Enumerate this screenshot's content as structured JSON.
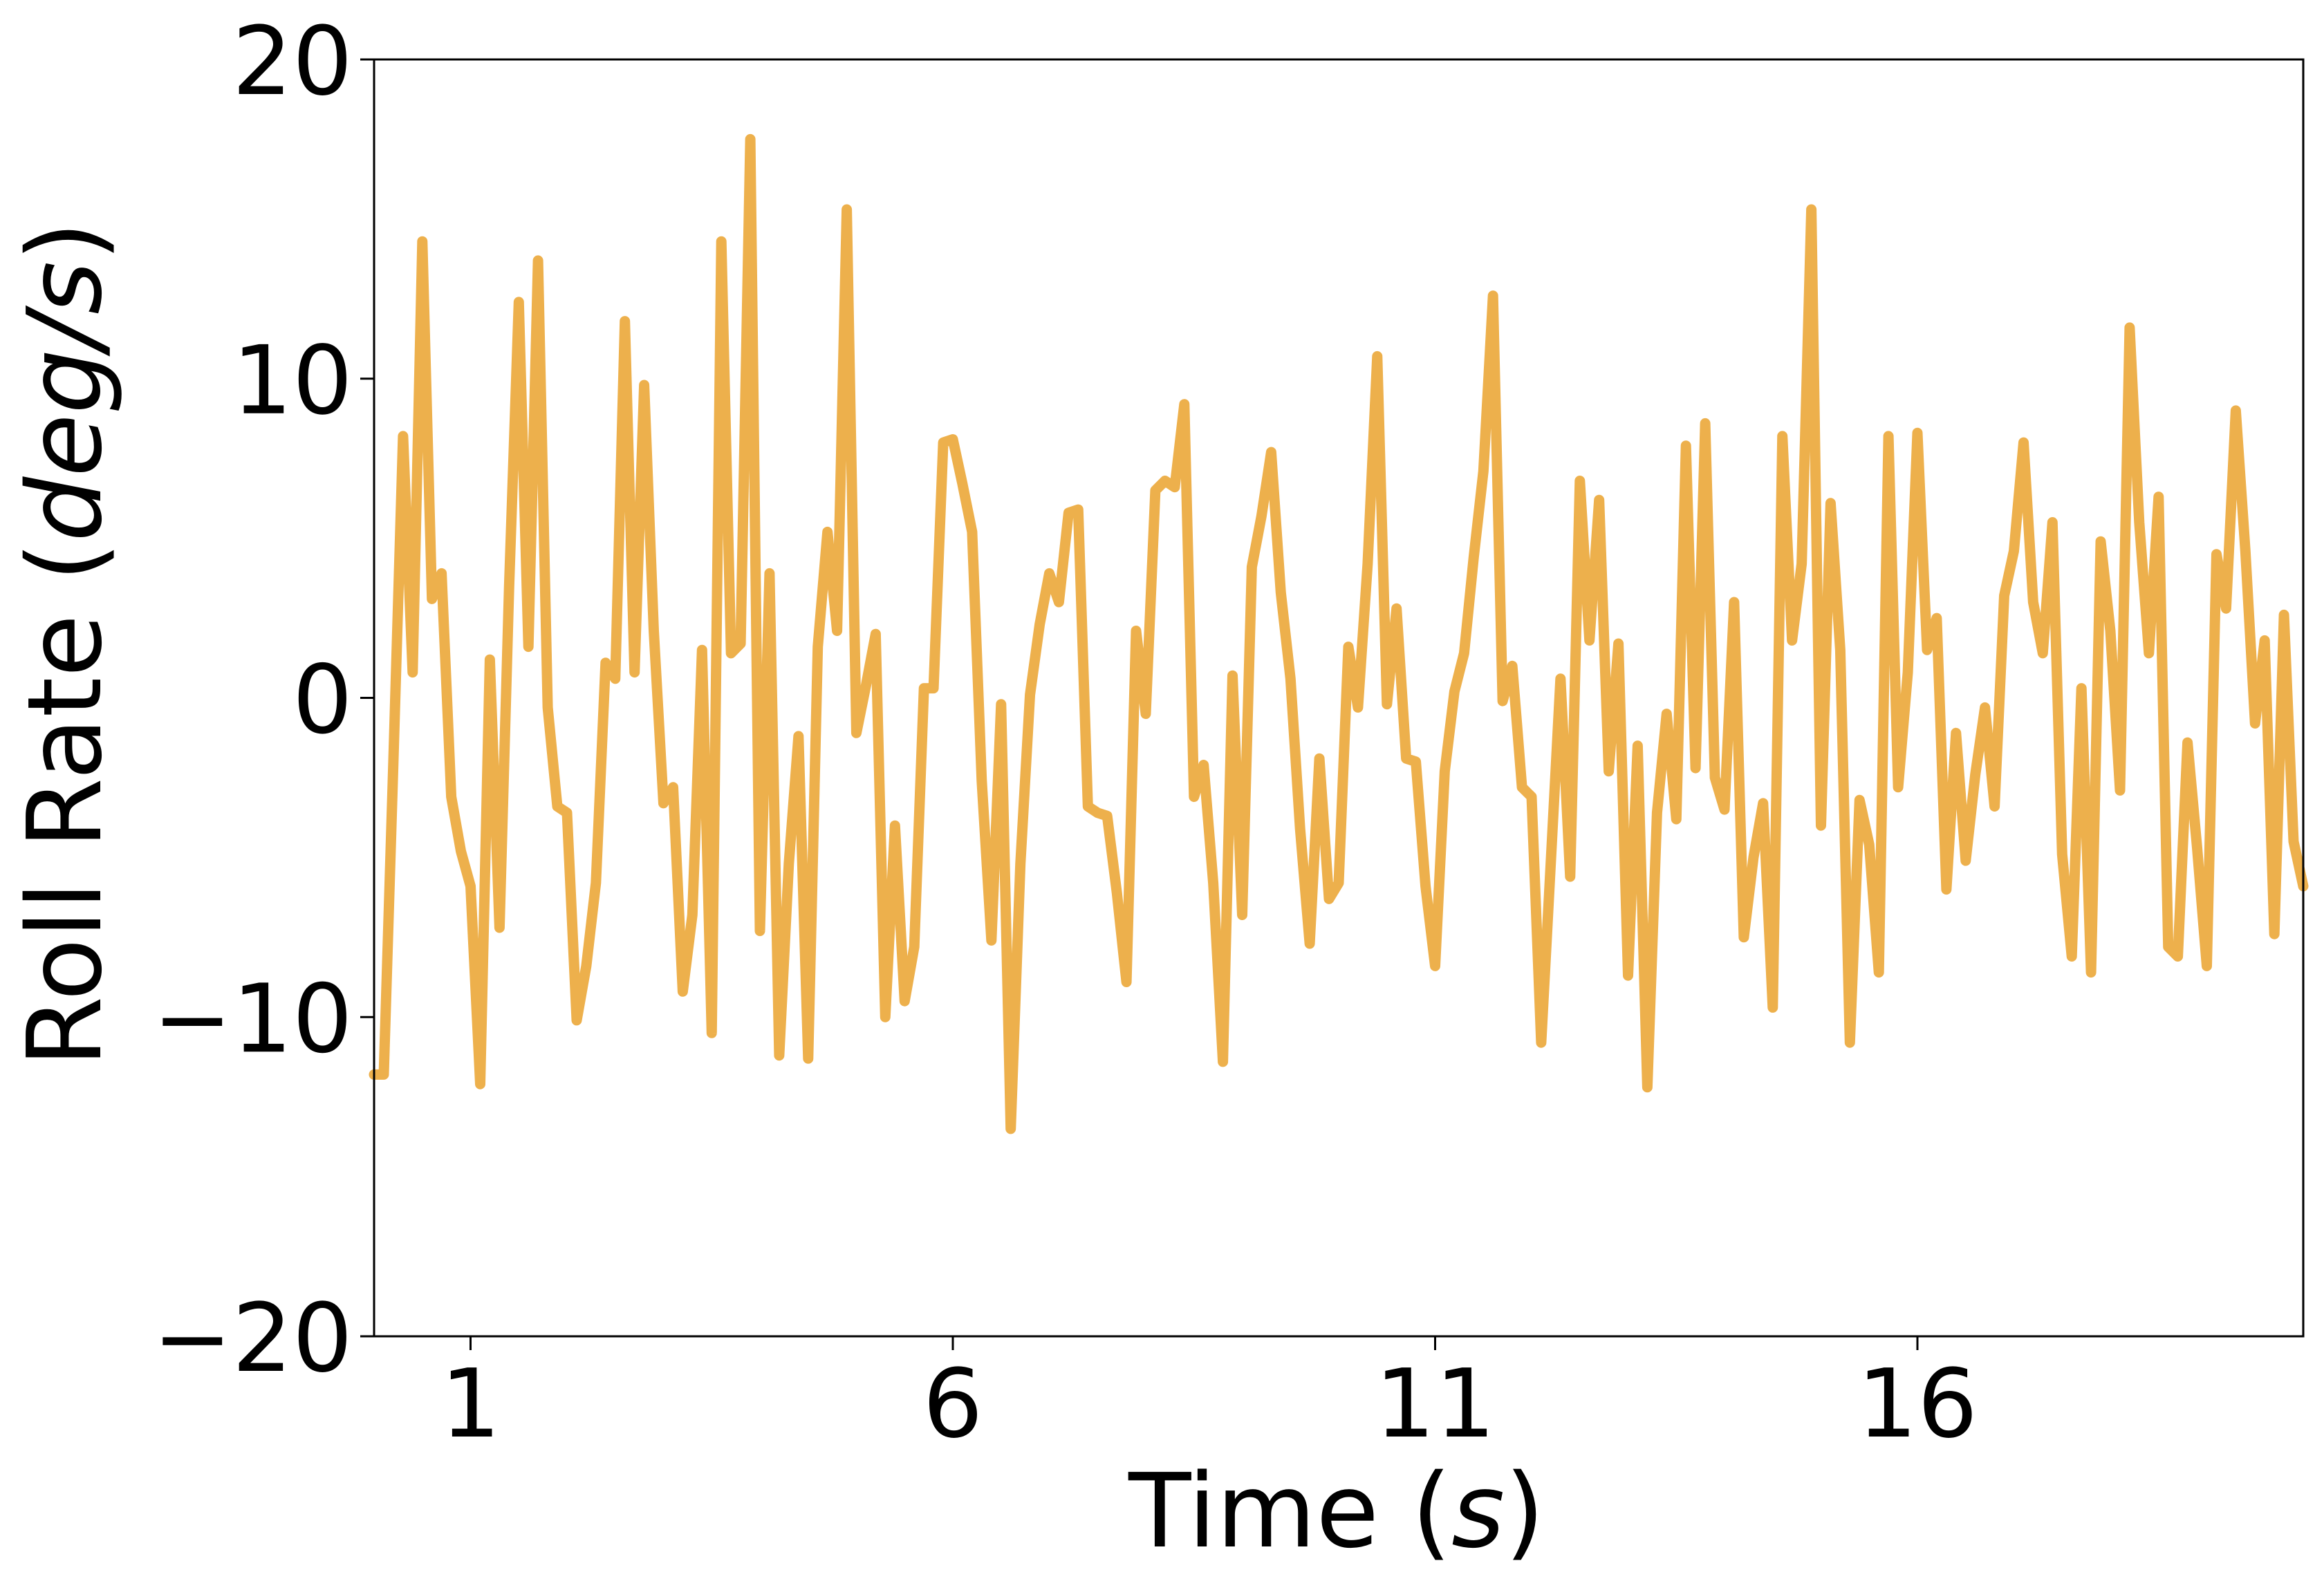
{
  "chart_data": {
    "type": "line",
    "xlabel_text": "Time (",
    "xlabel_unit": "s",
    "xlabel_close": ")",
    "ylabel_text": "Roll Rate (",
    "ylabel_unit": "deg/s",
    "ylabel_close": ")",
    "xlim": [
      0,
      20
    ],
    "ylim": [
      -20,
      20
    ],
    "xticks": [
      1,
      6,
      11,
      16
    ],
    "yticks": [
      -20,
      -10,
      0,
      10,
      20
    ],
    "ytick_labels": [
      "−20",
      "−10",
      "0",
      "10",
      "20"
    ],
    "grid": false,
    "line_color": "#EDB04C",
    "series": [
      {
        "x": [
          0.0,
          0.1,
          0.2,
          0.3,
          0.4,
          0.5,
          0.6,
          0.7,
          0.8,
          0.9,
          1.0,
          1.1,
          1.2,
          1.3,
          1.4,
          1.5,
          1.6,
          1.7,
          1.8,
          1.9,
          2.0,
          2.1,
          2.2,
          2.3,
          2.4,
          2.5,
          2.6,
          2.7,
          2.8,
          2.9,
          3.0,
          3.1,
          3.2,
          3.3,
          3.4,
          3.5,
          3.6,
          3.7,
          3.8,
          3.9,
          4.0,
          4.1,
          4.2,
          4.3,
          4.4,
          4.5,
          4.6,
          4.7,
          4.8,
          4.9,
          5.0,
          5.1,
          5.2,
          5.3,
          5.4,
          5.5,
          5.6,
          5.7,
          5.8,
          5.9,
          6.0,
          6.1,
          6.2,
          6.3,
          6.4,
          6.5,
          6.6,
          6.7,
          6.8,
          6.9,
          7.0,
          7.1,
          7.2,
          7.3,
          7.4,
          7.5,
          7.6,
          7.7,
          7.8,
          7.9,
          8.0,
          8.1,
          8.2,
          8.3,
          8.4,
          8.5,
          8.6,
          8.7,
          8.8,
          8.9,
          9.0,
          9.1,
          9.2,
          9.3,
          9.4,
          9.5,
          9.6,
          9.7,
          9.8,
          9.9,
          10.0,
          10.1,
          10.2,
          10.3,
          10.4,
          10.5,
          10.6,
          10.7,
          10.8,
          10.9,
          11.0,
          11.1,
          11.2,
          11.3,
          11.4,
          11.5,
          11.6,
          11.7,
          11.8,
          11.9,
          12.0,
          12.1,
          12.2,
          12.3,
          12.4,
          12.5,
          12.6,
          12.7,
          12.8,
          12.9,
          13.0,
          13.1,
          13.2,
          13.3,
          13.4,
          13.5,
          13.6,
          13.7,
          13.8,
          13.9,
          14.0,
          14.1,
          14.2,
          14.3,
          14.4,
          14.5,
          14.6,
          14.7,
          14.8,
          14.9,
          15.0,
          15.1,
          15.2,
          15.3,
          15.4,
          15.5,
          15.6,
          15.7,
          15.8,
          15.9,
          16.0,
          16.1,
          16.2,
          16.3,
          16.4,
          16.5,
          16.6,
          16.7,
          16.8,
          16.9,
          17.0,
          17.1,
          17.2,
          17.3,
          17.4,
          17.5,
          17.6,
          17.7,
          17.8,
          17.9,
          18.0,
          18.1,
          18.2,
          18.3,
          18.4,
          18.5,
          18.6,
          18.7,
          18.8,
          18.9,
          19.0,
          19.1,
          19.2,
          19.3,
          19.4,
          19.5,
          19.6,
          19.7,
          19.8,
          19.9,
          20.0
        ],
        "y": [
          -11.8,
          -11.8,
          -2.0,
          8.2,
          0.8,
          14.3,
          3.1,
          3.9,
          -3.1,
          -4.8,
          -5.9,
          -12.1,
          1.2,
          -7.2,
          3.5,
          12.4,
          1.6,
          13.7,
          -0.3,
          -3.4,
          -3.6,
          -10.1,
          -8.4,
          -5.8,
          1.1,
          0.6,
          11.8,
          0.8,
          9.8,
          2.1,
          -3.3,
          -2.8,
          -9.2,
          -6.8,
          1.5,
          -10.5,
          14.3,
          1.4,
          1.7,
          17.5,
          -7.3,
          3.9,
          -11.2,
          -5.2,
          -1.2,
          -11.3,
          1.6,
          5.2,
          2.1,
          15.3,
          -1.1,
          0.4,
          2.0,
          -10.0,
          -4.0,
          -9.5,
          -7.8,
          0.3,
          0.3,
          8.0,
          8.1,
          6.7,
          5.2,
          -2.6,
          -7.6,
          -0.2,
          -13.5,
          -5.2,
          0.1,
          2.3,
          3.9,
          3.0,
          5.8,
          5.9,
          -3.4,
          -3.6,
          -3.7,
          -6.1,
          -8.9,
          2.1,
          -0.5,
          6.5,
          6.8,
          6.6,
          9.2,
          -3.1,
          -2.1,
          -5.8,
          -11.4,
          0.7,
          -6.8,
          4.1,
          5.7,
          7.7,
          3.3,
          0.6,
          -4.1,
          -7.7,
          -1.9,
          -6.3,
          -5.8,
          1.6,
          -0.3,
          4.2,
          10.7,
          -0.2,
          2.8,
          -1.9,
          -2.0,
          -5.9,
          -8.4,
          -2.3,
          0.2,
          1.4,
          4.4,
          7.1,
          12.6,
          -0.1,
          1.0,
          -2.8,
          -3.1,
          -10.8,
          -5.1,
          0.6,
          -5.6,
          6.8,
          1.8,
          6.2,
          -2.3,
          1.7,
          -8.7,
          -1.5,
          -12.2,
          -3.6,
          -0.5,
          -3.8,
          7.9,
          -2.2,
          8.6,
          -2.5,
          -3.5,
          3.0,
          -7.5,
          -5.0,
          -3.3,
          -9.7,
          8.2,
          1.8,
          4.2,
          15.3,
          -4.0,
          6.1,
          1.5,
          -10.8,
          -3.2,
          -4.6,
          -8.6,
          8.2,
          -2.8,
          0.8,
          8.3,
          1.5,
          2.5,
          -6.0,
          -1.1,
          -5.1,
          -2.4,
          -0.3,
          -3.4,
          3.2,
          4.6,
          8.0,
          3.0,
          1.4,
          5.5,
          -4.9,
          -8.1,
          0.3,
          -8.6,
          4.9,
          2.1,
          -2.9,
          11.6,
          5.5,
          1.4,
          6.3,
          -7.8,
          -8.1,
          -1.4,
          -4.7,
          -8.4,
          4.5,
          2.8,
          9.0,
          4.6,
          -0.8,
          1.8,
          -7.4,
          2.6,
          -4.5,
          -5.9
        ]
      }
    ]
  }
}
